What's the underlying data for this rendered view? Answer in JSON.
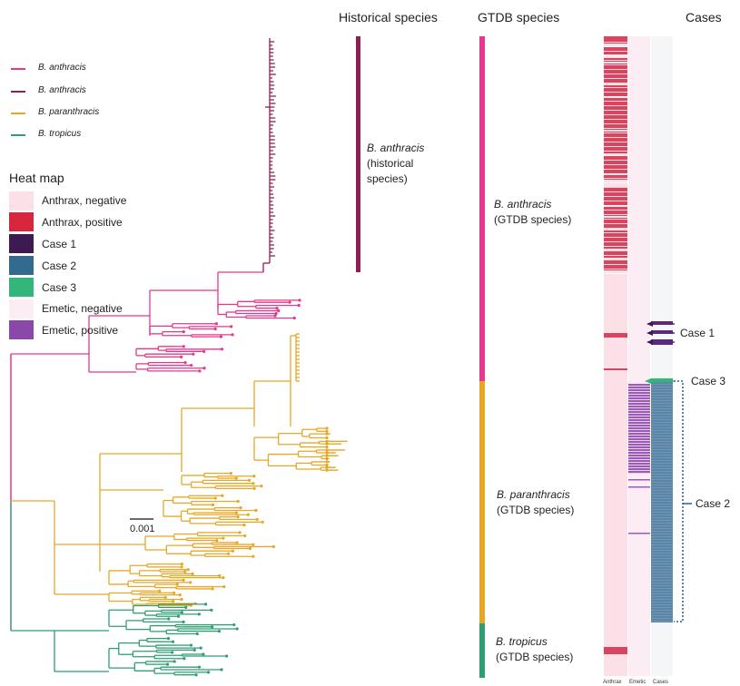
{
  "headers": {
    "historical": "Historical species",
    "gtdb": "GTDB species",
    "cases": "Cases"
  },
  "tree_legend": [
    {
      "label": "B. anthracis",
      "color": "#e3388e"
    },
    {
      "label": "B. anthracis",
      "color": "#8e1f55"
    },
    {
      "label": "B. paranthracis",
      "color": "#e6a726"
    },
    {
      "label": "B. tropicus",
      "color": "#2e9e72"
    }
  ],
  "heatmap_legend": {
    "title": "Heat map",
    "items": [
      {
        "label": "Anthrax, negative",
        "color": "#fbe0e8"
      },
      {
        "label": "Anthrax, positive",
        "color": "#d8263f"
      },
      {
        "label": "Case 1",
        "color": "#3e1a52"
      },
      {
        "label": "Case 2",
        "color": "#326b8e"
      },
      {
        "label": "Case 3",
        "color": "#34b57a"
      },
      {
        "label": "Emetic, negative",
        "color": "#fcedf5"
      },
      {
        "label": "Emetic, positive",
        "color": "#8a48a8"
      }
    ]
  },
  "clades": {
    "historical": {
      "name": "B. anthracis",
      "line1": "(historical",
      "line2": "species)",
      "color": "#8e1f55"
    },
    "gtdb_anthracis": {
      "name": "B. anthracis",
      "sub": "(GTDB species)",
      "color": "#e3388e"
    },
    "gtdb_paranthracis": {
      "name": "B. paranthracis",
      "sub": "(GTDB species)",
      "color": "#e6a726"
    },
    "gtdb_tropicus": {
      "name": "B. tropicus",
      "sub": "(GTDB species)",
      "color": "#2e9e72"
    }
  },
  "cases": {
    "case1": "Case 1",
    "case2": "Case 2",
    "case3": "Case 3"
  },
  "columns": {
    "anthrax": "Anthrax",
    "emetic": "Emetic",
    "cases": "Cases"
  },
  "scale_bar": "0.001"
}
